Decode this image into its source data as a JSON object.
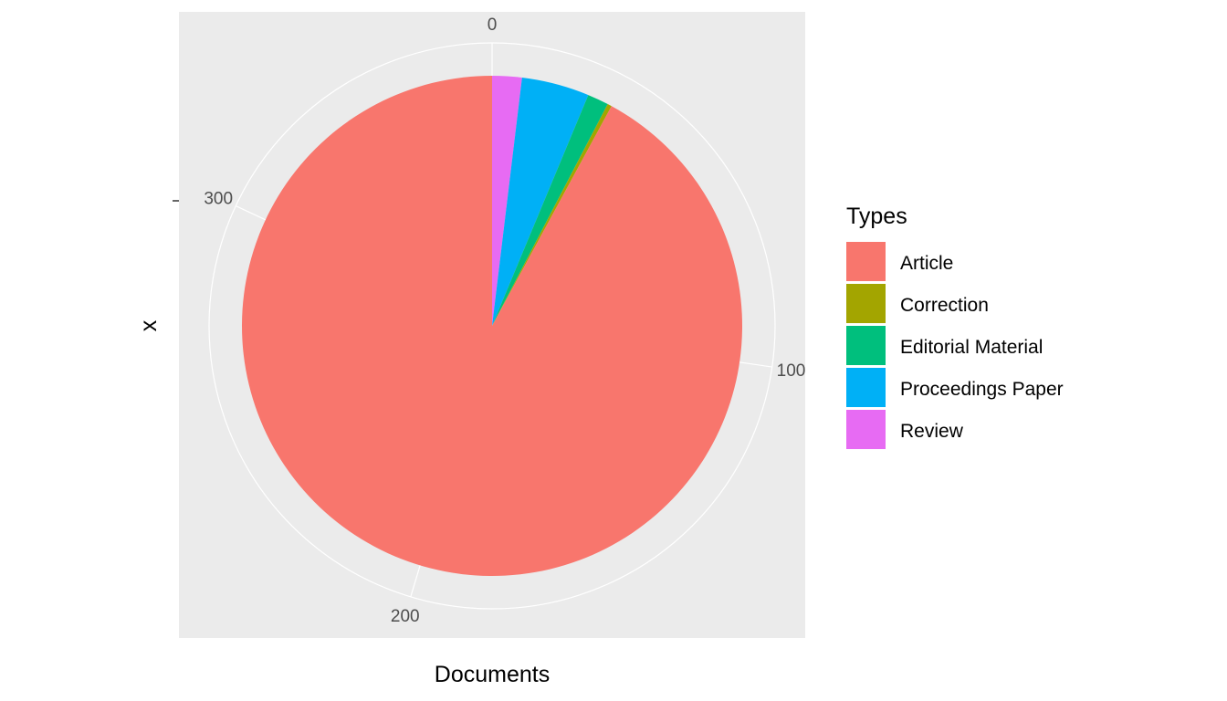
{
  "chart_data": {
    "type": "pie",
    "xlabel": "Documents",
    "ylabel": "x",
    "radial_ticks": [
      {
        "value": 0,
        "label": "0"
      },
      {
        "value": 100,
        "label": "100"
      },
      {
        "value": 200,
        "label": "200"
      },
      {
        "value": 300,
        "label": "300"
      }
    ],
    "total": 366,
    "legend": {
      "title": "Types",
      "position": "right"
    },
    "slices": [
      {
        "name": "Review",
        "value": 7,
        "color": "#E76BF3"
      },
      {
        "name": "Proceedings Paper",
        "value": 16,
        "color": "#00B0F6"
      },
      {
        "name": "Editorial Material",
        "value": 5,
        "color": "#00BF7D"
      },
      {
        "name": "Correction",
        "value": 1,
        "color": "#A3A500"
      },
      {
        "name": "Article",
        "value": 337,
        "color": "#F8766D"
      }
    ],
    "legend_order": [
      "Article",
      "Correction",
      "Editorial Material",
      "Proceedings Paper",
      "Review"
    ],
    "panel_background": "#EBEBEB",
    "grid_color": "#FFFFFF"
  }
}
